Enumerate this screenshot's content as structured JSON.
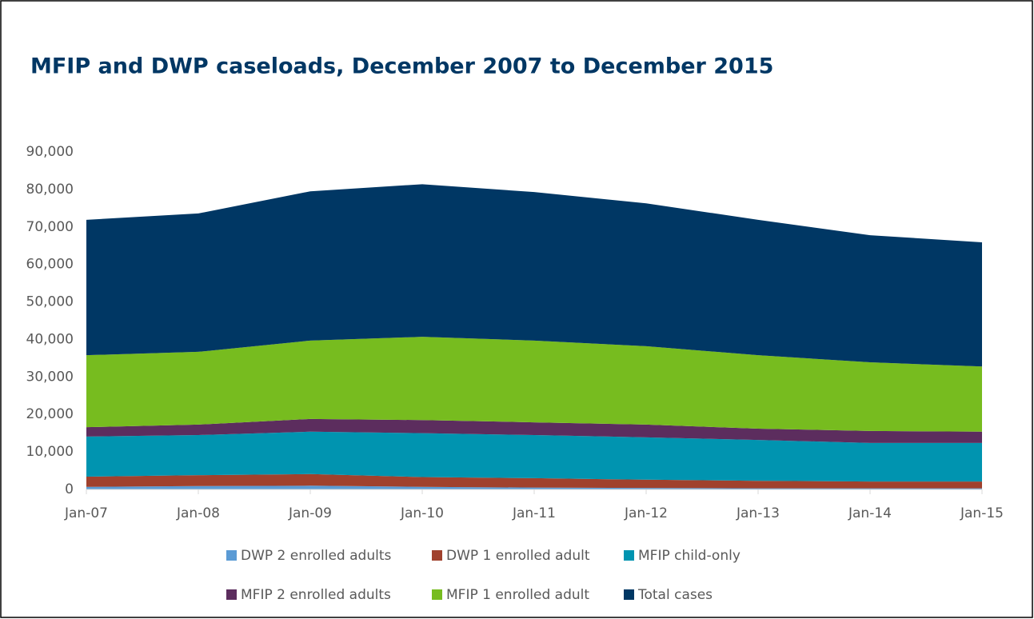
{
  "chart_data": {
    "type": "stacked_area",
    "title": "MFIP and DWP caseloads, December 2007 to December 2015",
    "categories": [
      "Jan-07",
      "Jan-08",
      "Jan-09",
      "Jan-10",
      "Jan-11",
      "Jan-12",
      "Jan-13",
      "Jan-14",
      "Jan-15"
    ],
    "series": [
      {
        "name": "DWP 2 enrolled adults",
        "color": "#5b9bd5",
        "values": [
          700,
          900,
          1000,
          700,
          500,
          400,
          300,
          300,
          300
        ]
      },
      {
        "name": "DWP 1 enrolled adult",
        "color": "#a0412d",
        "values": [
          2700,
          2900,
          3100,
          2600,
          2500,
          2200,
          2000,
          1800,
          1800
        ]
      },
      {
        "name": "MFIP child-only",
        "color": "#0094b0",
        "values": [
          10700,
          10700,
          11300,
          11700,
          11500,
          11300,
          10900,
          10300,
          10300
        ]
      },
      {
        "name": "MFIP 2 enrolled adults",
        "color": "#5c2d5e",
        "values": [
          2500,
          2800,
          3400,
          3500,
          3400,
          3400,
          3000,
          3200,
          3000
        ]
      },
      {
        "name": "MFIP 1 enrolled adult",
        "color": "#77bc1f",
        "values": [
          19200,
          19400,
          20900,
          22200,
          21800,
          20900,
          19600,
          18300,
          17400
        ]
      },
      {
        "name": "Total cases",
        "color": "#003764",
        "values": [
          36100,
          36900,
          39800,
          40700,
          39600,
          38100,
          36100,
          33900,
          33100
        ]
      }
    ],
    "ylim": [
      0,
      90000
    ],
    "yticks": [
      0,
      {
        "value": 10000,
        "label": "10,000"
      },
      {
        "value": 20000,
        "label": "20,000"
      },
      {
        "value": 30000,
        "label": "30,000"
      },
      {
        "value": 40000,
        "label": "40,000"
      },
      {
        "value": 50000,
        "label": "50,000"
      },
      {
        "value": 60000,
        "label": "60,000"
      },
      {
        "value": 70000,
        "label": "70,000"
      },
      {
        "value": 80000,
        "label": "80,000"
      },
      {
        "value": 90000,
        "label": "90,000"
      }
    ],
    "legend": "bottom"
  }
}
